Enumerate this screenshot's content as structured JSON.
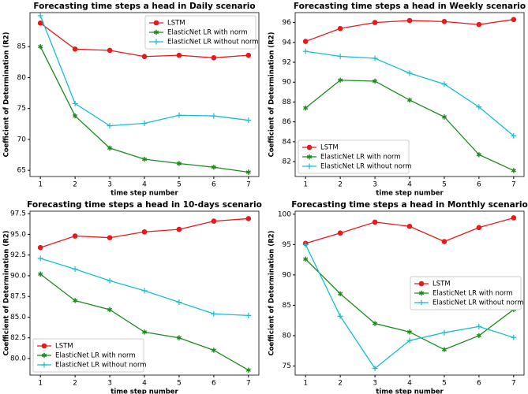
{
  "chart_data": [
    {
      "type": "line",
      "title": "Forecasting time steps a head in Daily scenario",
      "x_label": "time step number",
      "y_label": "Coefficient of Determination (R2)",
      "x": [
        1,
        2,
        3,
        4,
        5,
        6,
        7
      ],
      "xlim": [
        0.7,
        7.3
      ],
      "xticks": [
        1,
        2,
        3,
        4,
        5,
        6,
        7
      ],
      "ylim": [
        64,
        90.5
      ],
      "yticks": [
        65,
        70,
        75,
        80,
        85
      ],
      "legend": "upper right",
      "series": [
        {
          "name": "LSTM",
          "color": "#e8191b",
          "values": [
            88.8,
            84.6,
            84.4,
            83.4,
            83.6,
            83.2,
            83.6
          ]
        },
        {
          "name": "ElasticNet LR with norm",
          "color": "#1b8a1b",
          "values": [
            85.0,
            73.8,
            68.6,
            66.8,
            66.1,
            65.5,
            64.7
          ]
        },
        {
          "name": "ElasticNet LR without norm",
          "color": "#17becf",
          "values": [
            90.0,
            75.8,
            72.2,
            72.6,
            73.9,
            73.8,
            73.1
          ]
        }
      ]
    },
    {
      "type": "line",
      "title": "Forecasting time steps a head in Weekly scenario",
      "x_label": "time step number",
      "y_label": "Coefficient of Determination (R2)",
      "x": [
        1,
        2,
        3,
        4,
        5,
        6,
        7
      ],
      "xlim": [
        0.7,
        7.3
      ],
      "xticks": [
        1,
        2,
        3,
        4,
        5,
        6,
        7
      ],
      "ylim": [
        80.5,
        97
      ],
      "yticks": [
        82,
        84,
        86,
        88,
        90,
        92,
        94,
        96
      ],
      "legend": "lower left",
      "series": [
        {
          "name": "LSTM",
          "color": "#e8191b",
          "values": [
            94.1,
            95.4,
            96.0,
            96.2,
            96.1,
            95.8,
            96.3
          ]
        },
        {
          "name": "ElasticNet LR with norm",
          "color": "#1b8a1b",
          "values": [
            87.4,
            90.2,
            90.1,
            88.2,
            86.5,
            82.7,
            81.1
          ]
        },
        {
          "name": "ElasticNet LR without norm",
          "color": "#17becf",
          "values": [
            93.1,
            92.6,
            92.4,
            90.9,
            89.8,
            87.5,
            84.6
          ]
        }
      ]
    },
    {
      "type": "line",
      "title": "Forecasting time steps a head in 10-days scenario",
      "x_label": "time step number",
      "y_label": "Coefficient of Determination (R2)",
      "x": [
        1,
        2,
        3,
        4,
        5,
        6,
        7
      ],
      "xlim": [
        0.7,
        7.3
      ],
      "xticks": [
        1,
        2,
        3,
        4,
        5,
        6,
        7
      ],
      "ylim": [
        78,
        97.8
      ],
      "yticks": [
        {
          "value": 80,
          "label": "80.0"
        },
        82.5,
        {
          "value": 85,
          "label": "85.0"
        },
        87.5,
        {
          "value": 90,
          "label": "90.0"
        },
        92.5,
        {
          "value": 95,
          "label": "95.0"
        },
        97.5
      ],
      "legend": "lower left",
      "series": [
        {
          "name": "LSTM",
          "color": "#e8191b",
          "values": [
            93.4,
            94.8,
            94.6,
            95.3,
            95.6,
            96.6,
            96.9
          ]
        },
        {
          "name": "ElasticNet LR with norm",
          "color": "#1b8a1b",
          "values": [
            90.2,
            87.0,
            85.9,
            83.2,
            82.5,
            81.0,
            78.6
          ]
        },
        {
          "name": "ElasticNet LR without norm",
          "color": "#17becf",
          "values": [
            92.1,
            90.8,
            89.4,
            88.2,
            86.8,
            85.4,
            85.2
          ]
        }
      ]
    },
    {
      "type": "line",
      "title": "Forecasting time steps a head in Monthly scenario",
      "x_label": "time step number",
      "y_label": "Coefficient of Determination (R2)",
      "x": [
        1,
        2,
        3,
        4,
        5,
        6,
        7
      ],
      "xlim": [
        0.7,
        7.3
      ],
      "xticks": [
        1,
        2,
        3,
        4,
        5,
        6,
        7
      ],
      "ylim": [
        73.5,
        100.5
      ],
      "yticks": [
        75,
        80,
        85,
        90,
        95,
        100
      ],
      "legend": "center right",
      "series": [
        {
          "name": "LSTM",
          "color": "#e8191b",
          "values": [
            95.2,
            96.9,
            98.7,
            98.0,
            95.5,
            97.8,
            99.4
          ]
        },
        {
          "name": "ElasticNet LR with norm",
          "color": "#1b8a1b",
          "values": [
            92.6,
            86.9,
            82.0,
            80.6,
            77.7,
            80.0,
            84.3
          ]
        },
        {
          "name": "ElasticNet LR without norm",
          "color": "#17becf",
          "values": [
            95.0,
            83.2,
            74.6,
            79.2,
            80.5,
            81.5,
            79.7
          ]
        }
      ]
    }
  ]
}
